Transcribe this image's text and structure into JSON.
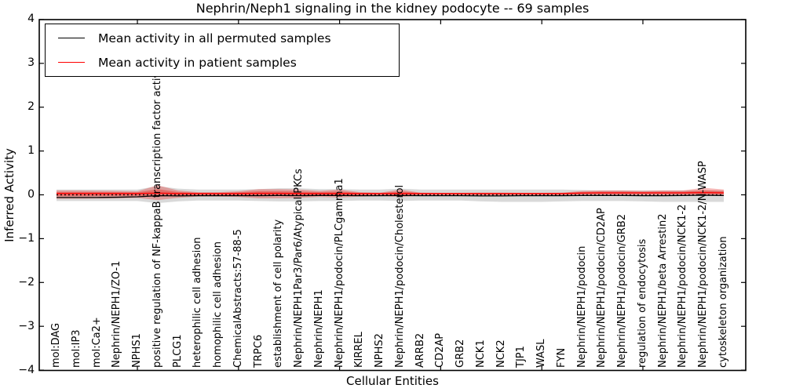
{
  "chart_data": {
    "type": "area",
    "title": "Nephrin/Neph1 signaling in the kidney podocyte -- 69 samples",
    "xlabel": "Cellular Entities",
    "ylabel": "Inferred Activity",
    "ylim": [
      -4,
      4
    ],
    "yticks": [
      4,
      3,
      2,
      1,
      0,
      -1,
      -2,
      -3,
      -4
    ],
    "ytick_labels": [
      "4",
      "3",
      "2",
      "1",
      "0",
      "−1",
      "−2",
      "−3",
      "−4"
    ],
    "grid": false,
    "legend_position": "upper left",
    "categories": [
      "mol:DAG",
      "mol:IP3",
      "mol:Ca2+",
      "Nephrin/NEPH1/ZO-1",
      "NPHS1",
      "positive regulation of NF-kappaB transcription factor activity",
      "PLCG1",
      "heterophilic cell adhesion",
      "homophilic cell adhesion",
      "ChemicalAbstracts:57-88-5",
      "TRPC6",
      "establishment of cell polarity",
      "Nephrin/NEPH1Par3/Par6/Atypical PKCs",
      "Nephrin/NEPH1",
      "Nephrin/NEPH1/podocin/PLCgamma1",
      "KIRREL",
      "NPHS2",
      "Nephrin/NEPH1/podocin/Cholesterol",
      "ARRB2",
      "CD2AP",
      "GRB2",
      "NCK1",
      "NCK2",
      "TJP1",
      "WASL",
      "FYN",
      "Nephrin/NEPH1/podocin",
      "Nephrin/NEPH1/podocin/CD2AP",
      "Nephrin/NEPH1/podocin/GRB2",
      "regulation of endocytosis",
      "Nephrin/NEPH1/beta Arrestin2",
      "Nephrin/NEPH1/podocin/NCK1-2",
      "Nephrin/NEPH1/podocin/NCK1-2/N-WASP",
      "cytoskeleton organization"
    ],
    "series": [
      {
        "name": "Mean activity in all permuted samples",
        "color": "#000000",
        "style": "solid",
        "values": [
          -0.06,
          -0.06,
          -0.06,
          -0.055,
          -0.045,
          -0.02,
          -0.025,
          -0.02,
          -0.02,
          -0.02,
          -0.02,
          -0.015,
          -0.02,
          -0.015,
          -0.015,
          -0.02,
          -0.02,
          -0.015,
          -0.02,
          -0.02,
          -0.02,
          -0.025,
          -0.025,
          -0.02,
          -0.02,
          -0.02,
          -0.015,
          -0.015,
          -0.015,
          -0.02,
          -0.02,
          -0.015,
          -0.01,
          -0.015
        ]
      },
      {
        "name": "Mean activity in patient samples",
        "color": "#ff0000",
        "style": "solid",
        "values": [
          0.03,
          0.03,
          0.03,
          0.03,
          0.03,
          0.04,
          0.03,
          0.03,
          0.03,
          0.03,
          0.035,
          0.035,
          0.03,
          0.03,
          0.03,
          0.03,
          0.03,
          0.03,
          0.03,
          0.03,
          0.03,
          0.03,
          0.03,
          0.03,
          0.03,
          0.03,
          0.04,
          0.045,
          0.045,
          0.045,
          0.045,
          0.045,
          0.05,
          0.045
        ]
      },
      {
        "name": "zero-baseline",
        "color": "#000000",
        "style": "dotted",
        "constant": 0
      }
    ],
    "bands": [
      {
        "name": "permuted-range",
        "color": "#787878",
        "opacity": 0.28,
        "upper": [
          0.12,
          0.12,
          0.12,
          0.12,
          0.12,
          0.2,
          0.14,
          0.12,
          0.12,
          0.12,
          0.13,
          0.15,
          0.15,
          0.13,
          0.13,
          0.12,
          0.12,
          0.14,
          0.12,
          0.12,
          0.12,
          0.12,
          0.12,
          0.12,
          0.12,
          0.12,
          0.11,
          0.1,
          0.1,
          0.1,
          0.1,
          0.1,
          0.1,
          0.1
        ],
        "lower": [
          -0.14,
          -0.14,
          -0.14,
          -0.14,
          -0.14,
          -0.19,
          -0.15,
          -0.13,
          -0.13,
          -0.13,
          -0.14,
          -0.15,
          -0.15,
          -0.14,
          -0.14,
          -0.13,
          -0.13,
          -0.14,
          -0.13,
          -0.13,
          -0.13,
          -0.15,
          -0.16,
          -0.16,
          -0.16,
          -0.15,
          -0.14,
          -0.14,
          -0.14,
          -0.15,
          -0.16,
          -0.16,
          -0.16,
          -0.16
        ]
      },
      {
        "name": "patient-range",
        "color": "#e4322d",
        "opacity": 0.35,
        "upper": [
          0.1,
          0.1,
          0.095,
          0.09,
          0.08,
          0.22,
          0.1,
          0.06,
          0.06,
          0.08,
          0.13,
          0.13,
          0.12,
          0.09,
          0.12,
          0.06,
          0.05,
          0.12,
          0.05,
          0.045,
          0.045,
          0.05,
          0.05,
          0.045,
          0.045,
          0.05,
          0.09,
          0.1,
          0.1,
          0.09,
          0.1,
          0.1,
          0.16,
          0.12
        ],
        "lower": [
          -0.09,
          -0.09,
          -0.085,
          -0.08,
          -0.07,
          -0.12,
          -0.07,
          -0.04,
          -0.04,
          -0.05,
          -0.08,
          -0.08,
          -0.07,
          -0.05,
          -0.06,
          -0.04,
          -0.03,
          -0.05,
          -0.02,
          -0.02,
          -0.02,
          -0.02,
          -0.02,
          -0.02,
          -0.02,
          -0.02,
          -0.01,
          -0.01,
          -0.01,
          -0.01,
          -0.01,
          -0.01,
          -0.01,
          -0.01
        ]
      }
    ]
  },
  "legend": {
    "entries": [
      {
        "label": "Mean activity in all permuted samples",
        "color": "#000000"
      },
      {
        "label": "Mean activity in patient samples",
        "color": "#ff0000"
      }
    ]
  }
}
